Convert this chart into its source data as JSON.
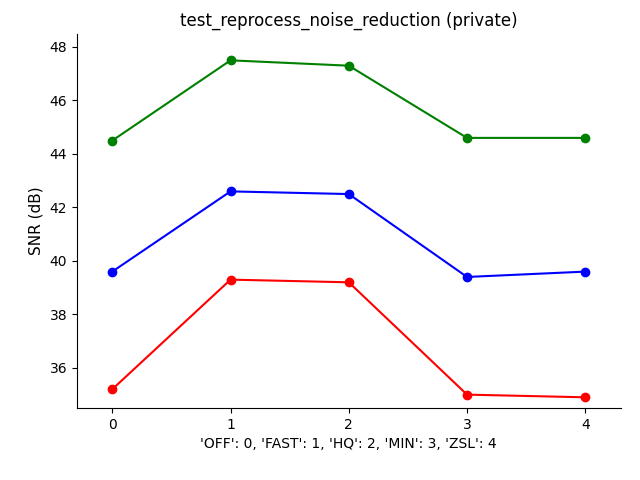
{
  "title": "test_reprocess_noise_reduction (private)",
  "xlabel": "'OFF': 0, 'FAST': 1, 'HQ': 2, 'MIN': 3, 'ZSL': 4",
  "ylabel": "SNR (dB)",
  "x": [
    0,
    1,
    2,
    3,
    4
  ],
  "green": [
    44.5,
    47.5,
    47.3,
    44.6,
    44.6
  ],
  "blue": [
    39.6,
    42.6,
    42.5,
    39.4,
    39.6
  ],
  "red": [
    35.2,
    39.3,
    39.2,
    35.0,
    34.9
  ],
  "green_color": "#008000",
  "blue_color": "#0000ff",
  "red_color": "#ff0000",
  "ylim": [
    34.5,
    48.5
  ],
  "yticks": [
    36,
    38,
    40,
    42,
    44,
    46,
    48
  ],
  "xlim": [
    -0.3,
    4.3
  ],
  "xticks": [
    0,
    1,
    2,
    3,
    4
  ],
  "bg_color": "#ffffff",
  "title_fontsize": 12,
  "axis_label_fontsize": 11,
  "tick_fontsize": 10,
  "xlabel_fontsize": 10,
  "linewidth": 1.5,
  "markersize": 6
}
